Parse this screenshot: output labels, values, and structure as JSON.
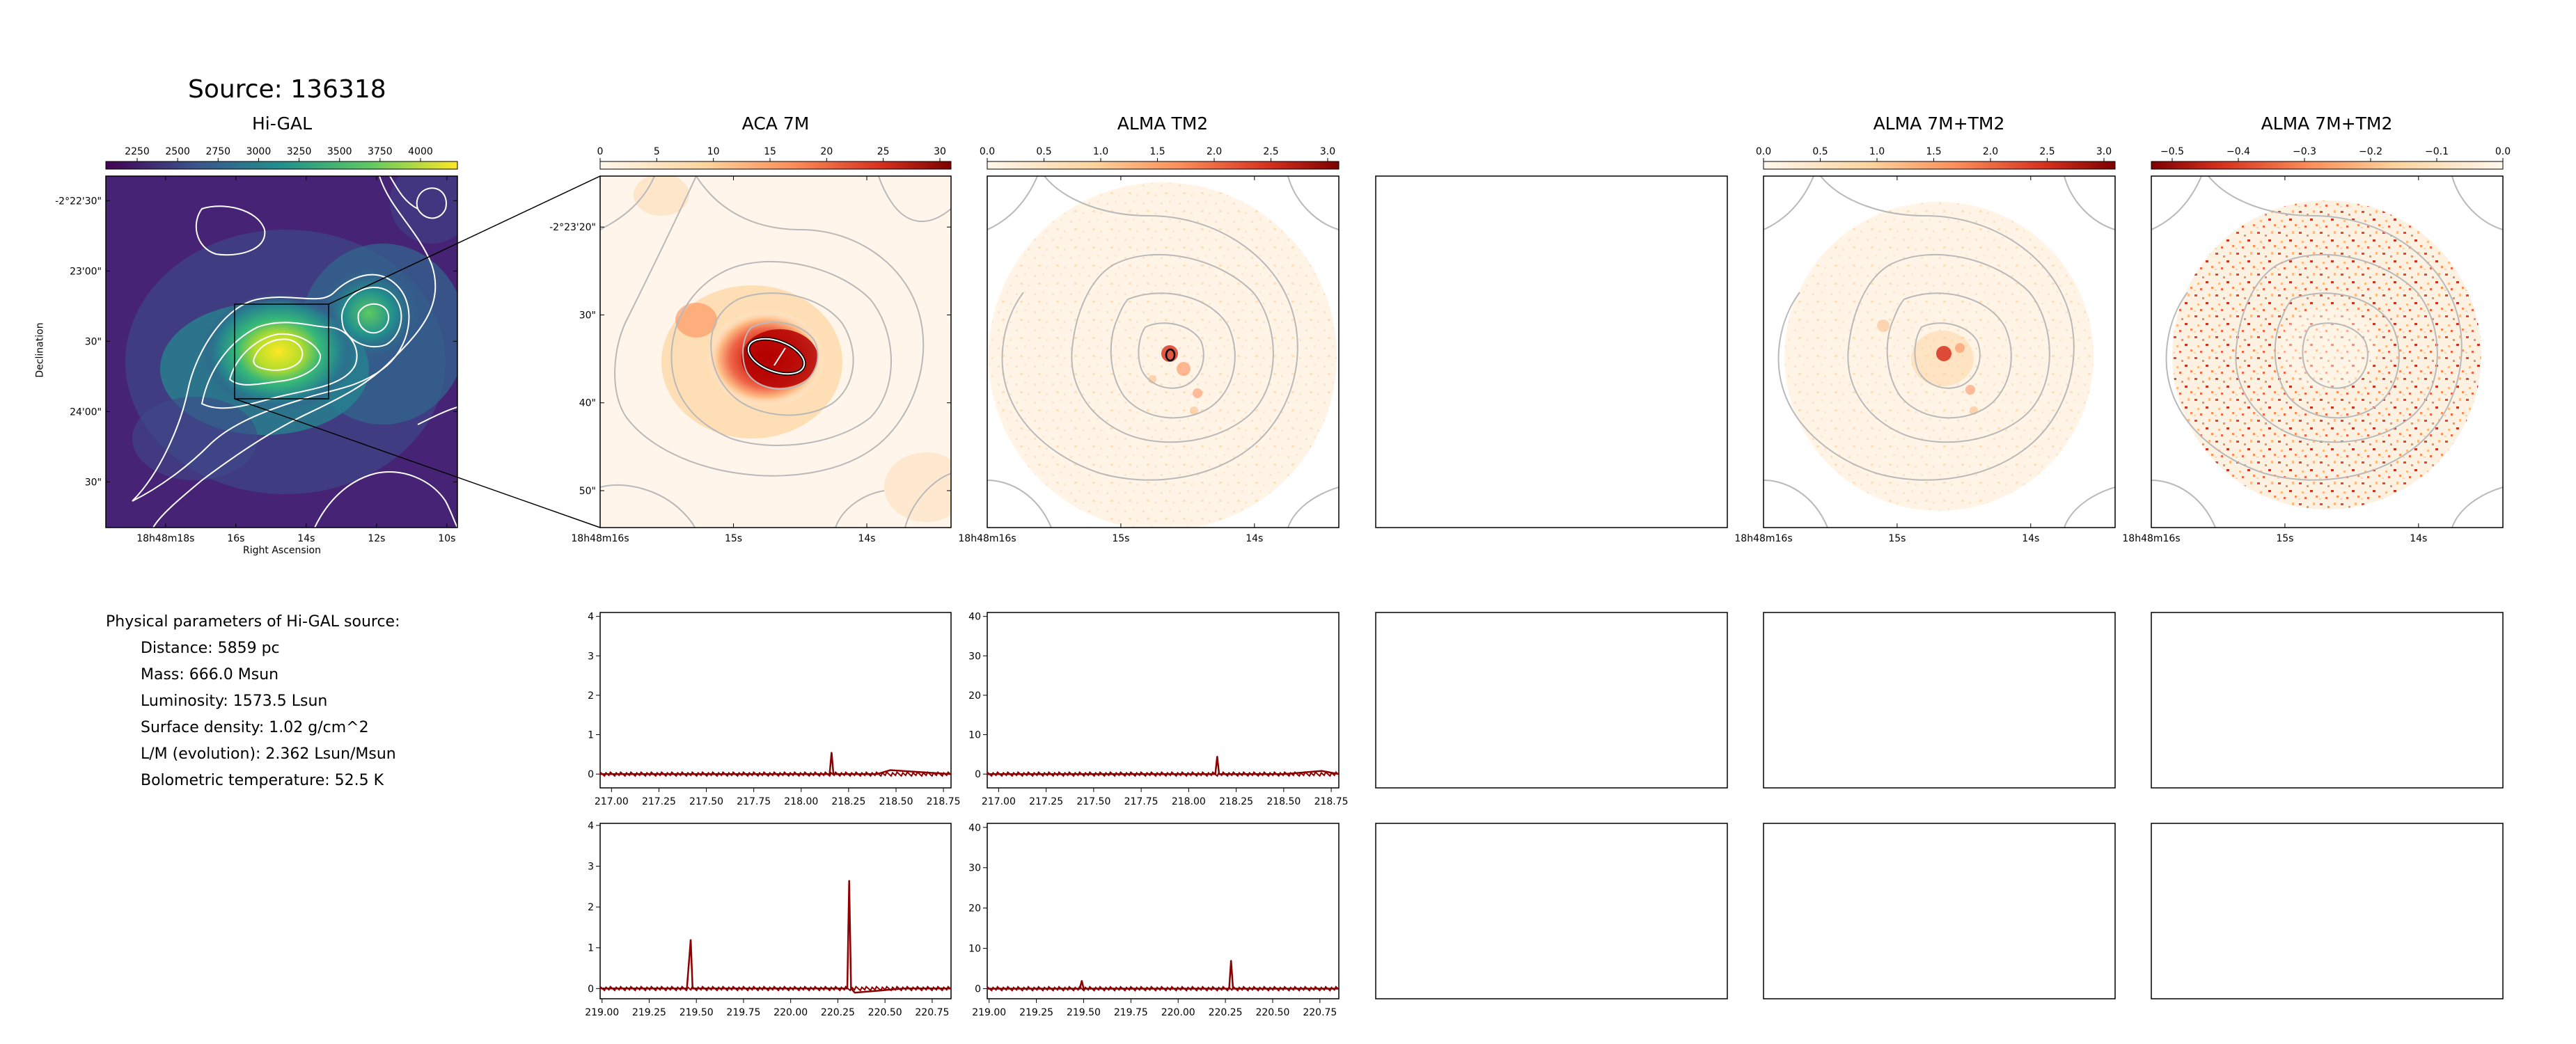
{
  "figure": {
    "title": "Source: 136318",
    "colors": {
      "accent": "#8b0000",
      "spectrum": "#8b0000",
      "frame": "#000000",
      "contour_dark": "#b9b9b9",
      "contour_light": "#ffffff",
      "viridis_low": "#440154",
      "viridis_high": "#fde725"
    }
  },
  "panels": {
    "higal": {
      "title": "Hi-GAL",
      "colorbar_ticks": [
        "2250",
        "2500",
        "2750",
        "3000",
        "3250",
        "3500",
        "3750",
        "4000"
      ],
      "xlabel": "Right Ascension",
      "ylabel": "Declination",
      "xticks": [
        "18h48m18s",
        "16s",
        "14s",
        "12s",
        "10s"
      ],
      "yticks": [
        "-2°22'30\"",
        "23'00\"",
        "30\"",
        "24'00\"",
        "30\""
      ]
    },
    "aca": {
      "title": "ACA 7M",
      "colorbar_ticks": [
        "0",
        "5",
        "10",
        "15",
        "20",
        "25",
        "30"
      ],
      "xticks": [
        "18h48m16s",
        "15s",
        "14s"
      ],
      "yticks": [
        "-2°23'20\"",
        "30\"",
        "40\"",
        "50\""
      ]
    },
    "tm2": {
      "title": "ALMA TM2",
      "colorbar_ticks": [
        "0.0",
        "0.5",
        "1.0",
        "1.5",
        "2.0",
        "2.5",
        "3.0"
      ],
      "xticks": [
        "18h48m16s",
        "15s",
        "14s"
      ]
    },
    "combo": {
      "title": "ALMA 7M+TM2",
      "colorbar_ticks": [
        "0.0",
        "0.5",
        "1.0",
        "1.5",
        "2.0",
        "2.5",
        "3.0"
      ],
      "xticks": [
        "18h48m16s",
        "15s",
        "14s"
      ]
    },
    "residual": {
      "title": "ALMA 7M+TM2",
      "colorbar_ticks": [
        "−0.5",
        "−0.4",
        "−0.3",
        "−0.2",
        "−0.1",
        "0.0"
      ],
      "xticks": [
        "18h48m16s",
        "15s",
        "14s"
      ]
    }
  },
  "params": {
    "header": "Physical parameters of Hi-GAL source:",
    "distance": "Distance: 5859 pc",
    "mass": "Mass: 666.0 Msun",
    "luminosity": "Luminosity: 1573.5 Lsun",
    "surface_density": "Surface density: 1.02 g/cm^2",
    "lm": "L/M (evolution): 2.362 Lsun/Msun",
    "tbol": "Bolometric temperature: 52.5 K"
  },
  "chart_data": [
    {
      "type": "line",
      "panel": "spec-aca-upper",
      "x": [
        216.94,
        217.4,
        217.8,
        218.0,
        218.15,
        218.16,
        218.17,
        218.4,
        218.47,
        218.79
      ],
      "y": [
        0,
        0,
        0,
        0,
        0,
        0.55,
        0,
        0,
        0.1,
        0
      ],
      "xlim": [
        216.94,
        218.79
      ],
      "ylim": [
        -0.35,
        4.1
      ],
      "xticks": [
        "217.00",
        "217.25",
        "217.50",
        "217.75",
        "218.00",
        "218.25",
        "218.50",
        "218.75"
      ],
      "xtick_values": [
        217.0,
        217.25,
        217.5,
        217.75,
        218.0,
        218.25,
        218.5,
        218.75
      ],
      "yticks": [
        "0",
        "1",
        "2",
        "3",
        "4"
      ],
      "ytick_values": [
        0,
        1,
        2,
        3,
        4
      ]
    },
    {
      "type": "line",
      "panel": "spec-tm2-upper",
      "x": [
        216.94,
        217.4,
        217.8,
        218.1,
        218.14,
        218.15,
        218.16,
        218.5,
        218.7,
        218.79
      ],
      "y": [
        0,
        0,
        0,
        0,
        0,
        4.5,
        0,
        0,
        0.8,
        0
      ],
      "xlim": [
        216.94,
        218.79
      ],
      "ylim": [
        -3.5,
        41
      ],
      "xticks": [
        "217.00",
        "217.25",
        "217.50",
        "217.75",
        "218.00",
        "218.25",
        "218.50",
        "218.75"
      ],
      "xtick_values": [
        217.0,
        217.25,
        217.5,
        217.75,
        218.0,
        218.25,
        218.5,
        218.75
      ],
      "yticks": [
        "0",
        "10",
        "20",
        "30",
        "40"
      ],
      "ytick_values": [
        0,
        10,
        20,
        30,
        40
      ]
    },
    {
      "type": "line",
      "panel": "spec-aca-lower",
      "x": [
        218.99,
        219.3,
        219.45,
        219.47,
        219.48,
        219.7,
        220.0,
        220.3,
        220.31,
        220.32,
        220.34,
        220.6,
        220.85
      ],
      "y": [
        0,
        0,
        0,
        1.2,
        0,
        0,
        0,
        0,
        2.65,
        0,
        -0.1,
        0,
        0
      ],
      "xlim": [
        218.99,
        220.85
      ],
      "ylim": [
        -0.25,
        4.05
      ],
      "xticks": [
        "219.00",
        "219.25",
        "219.50",
        "219.75",
        "220.00",
        "220.25",
        "220.50",
        "220.75"
      ],
      "xtick_values": [
        219.0,
        219.25,
        219.5,
        219.75,
        220.0,
        220.25,
        220.5,
        220.75
      ],
      "yticks": [
        "0",
        "1",
        "2",
        "3",
        "4"
      ],
      "ytick_values": [
        0,
        1,
        2,
        3,
        4
      ]
    },
    {
      "type": "line",
      "panel": "spec-tm2-lower",
      "x": [
        218.99,
        219.3,
        219.48,
        219.49,
        219.5,
        219.8,
        220.1,
        220.27,
        220.28,
        220.29,
        220.6,
        220.85
      ],
      "y": [
        0,
        0,
        0,
        2.0,
        0,
        0,
        0,
        0,
        7.0,
        0,
        0,
        0
      ],
      "xlim": [
        218.99,
        220.85
      ],
      "ylim": [
        -2.5,
        41
      ],
      "xticks": [
        "219.00",
        "219.25",
        "219.50",
        "219.75",
        "220.00",
        "220.25",
        "220.50",
        "220.75"
      ],
      "xtick_values": [
        219.0,
        219.25,
        219.5,
        219.75,
        220.0,
        220.25,
        220.5,
        220.75
      ],
      "yticks": [
        "0",
        "10",
        "20",
        "30",
        "40"
      ],
      "ytick_values": [
        0,
        10,
        20,
        30,
        40
      ]
    }
  ]
}
